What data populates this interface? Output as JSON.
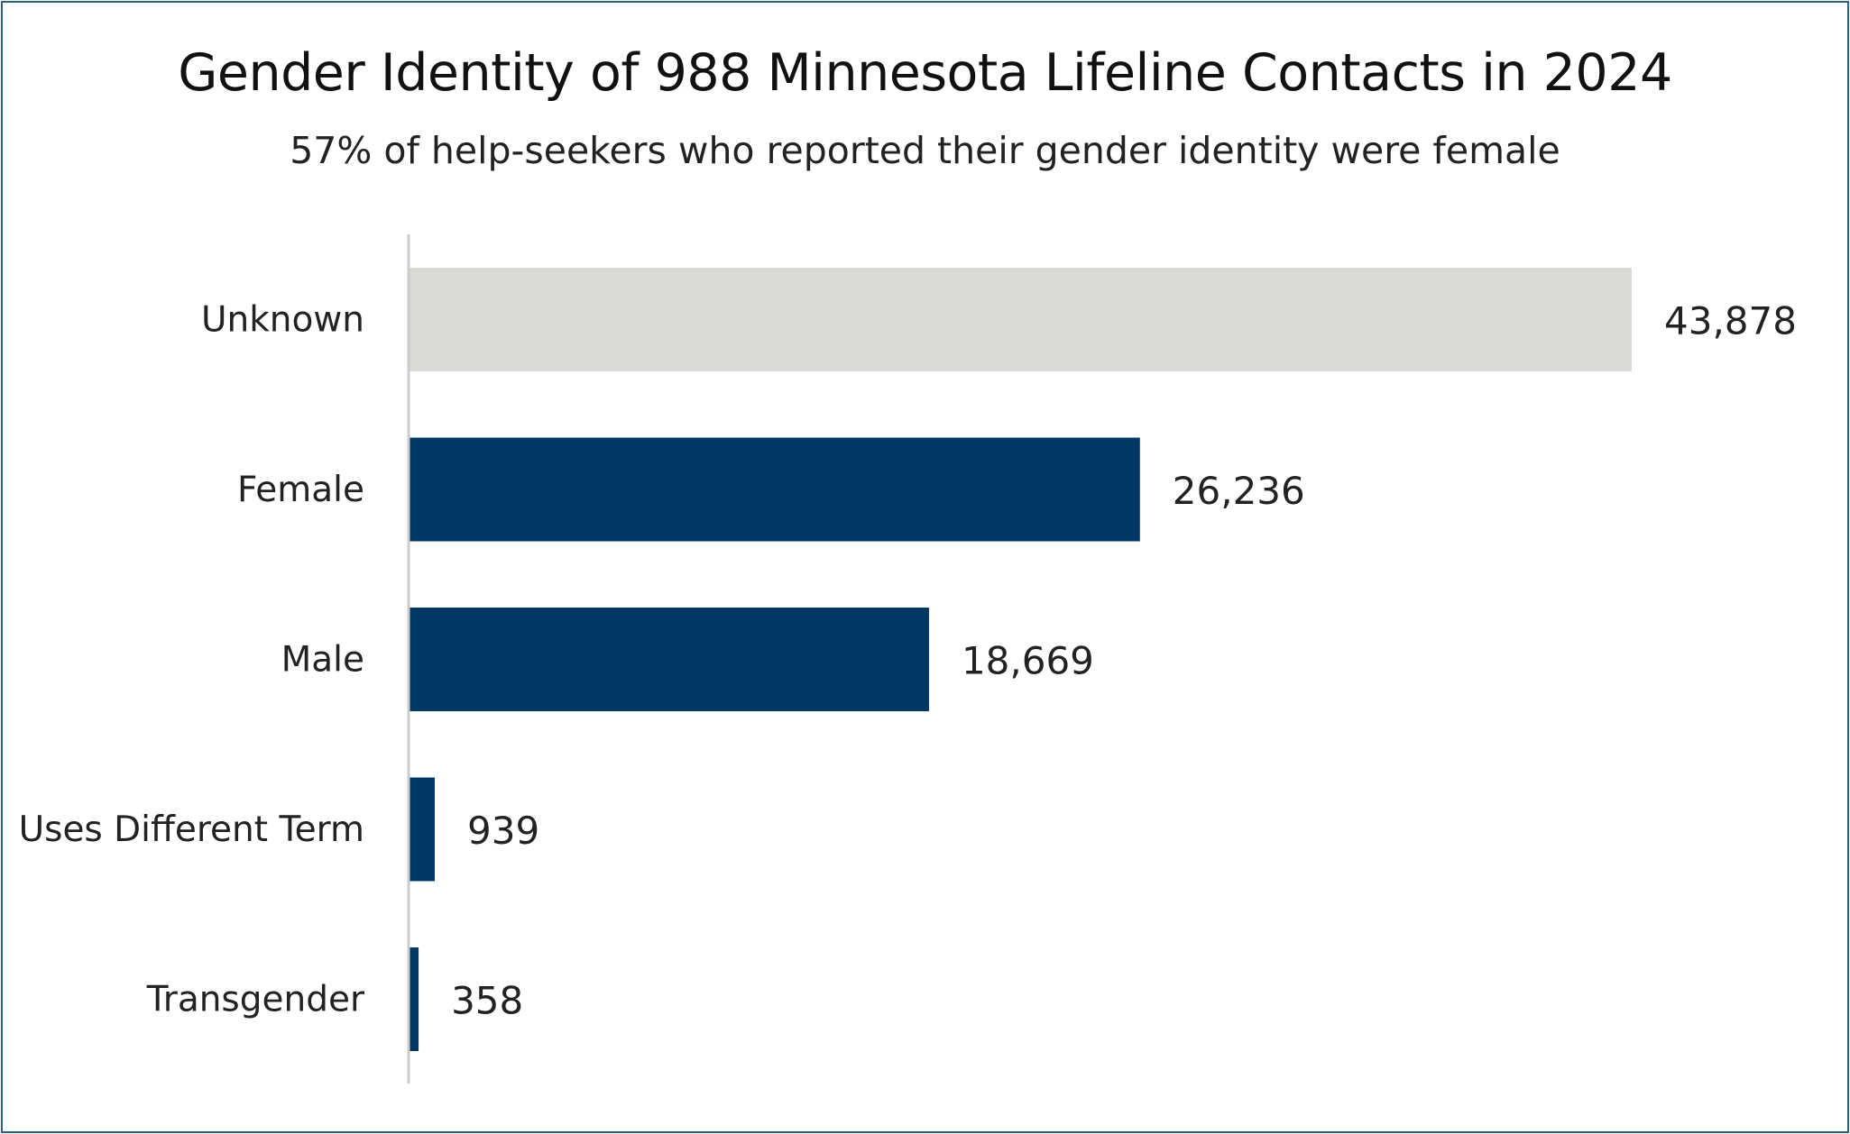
{
  "title": "Gender Identity of 988 Minnesota Lifeline Contacts in 2024",
  "subtitle": "57% of help-seekers who reported their gender identity were female",
  "colors": {
    "unknown_bar": "#d9d9d6",
    "reported_bar": "#003865",
    "frame": "#2f5f7e",
    "axis": "#cccccc"
  },
  "chart_data": {
    "type": "bar",
    "orientation": "horizontal",
    "title": "Gender Identity of 988 Minnesota Lifeline Contacts in 2024",
    "subtitle": "57% of help-seekers who reported their gender identity were female",
    "categories": [
      "Unknown",
      "Female",
      "Male",
      "Uses Different Term",
      "Transgender"
    ],
    "values": [
      43878,
      26236,
      18669,
      939,
      358
    ],
    "value_labels": [
      "43,878",
      "26,236",
      "18,669",
      "939",
      "358"
    ],
    "bar_colors": [
      "#d9d9d6",
      "#003865",
      "#003865",
      "#003865",
      "#003865"
    ],
    "xlim": [
      0,
      43878
    ],
    "grid": false,
    "legend": "none"
  }
}
